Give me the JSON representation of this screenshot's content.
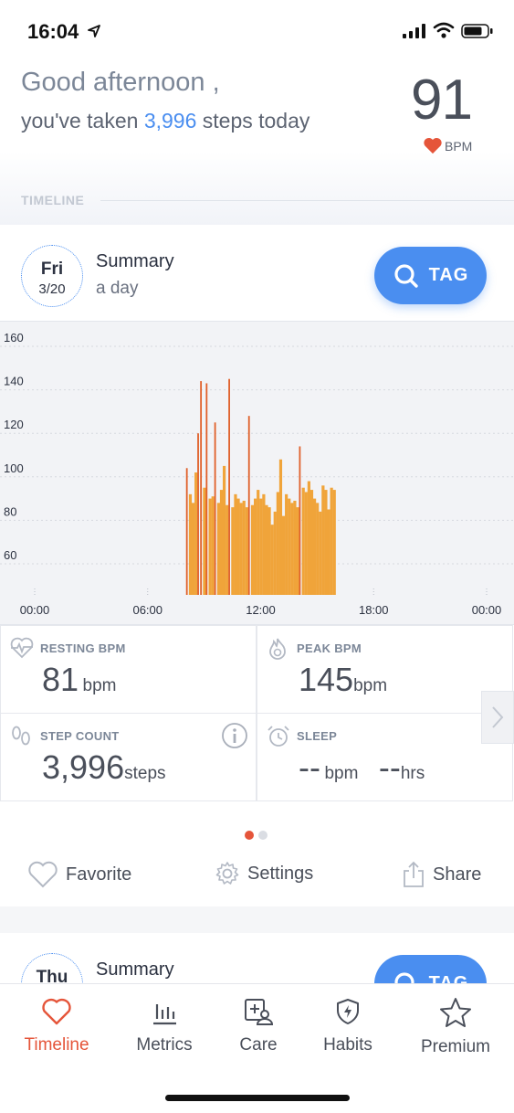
{
  "status_bar": {
    "time": "16:04"
  },
  "header": {
    "greeting": "Good afternoon ,",
    "steps_prefix": "you've taken ",
    "steps_value": "3,996",
    "steps_suffix": " steps today",
    "heart_rate": "91",
    "heart_rate_unit": "BPM",
    "section_label": "TIMELINE"
  },
  "card": {
    "day_of_week": "Fri",
    "date": "3/20",
    "title": "Summary",
    "subtitle": "a day",
    "tag_button": "TAG"
  },
  "chart_data": {
    "type": "bar",
    "xlabel": "",
    "ylabel": "",
    "x_ticks": [
      "00:00",
      "06:00",
      "12:00",
      "18:00",
      "00:00"
    ],
    "y_ticks": [
      60,
      80,
      100,
      120,
      140,
      160
    ],
    "xlim_hours": [
      0,
      24
    ],
    "ylim": [
      50,
      165
    ],
    "bar_color": "#f0a43a",
    "peak_color": "#e0602a",
    "hours": [
      8.1,
      8.25,
      8.4,
      8.55,
      8.7,
      8.85,
      9.0,
      9.15,
      9.3,
      9.45,
      9.6,
      9.75,
      9.9,
      10.05,
      10.2,
      10.35,
      10.5,
      10.65,
      10.8,
      10.95,
      11.1,
      11.25,
      11.4,
      11.55,
      11.7,
      11.85,
      12.0,
      12.15,
      12.3,
      12.45,
      12.6,
      12.75,
      12.9,
      13.05,
      13.2,
      13.35,
      13.5,
      13.65,
      13.8,
      13.95,
      14.1,
      14.25,
      14.4,
      14.55,
      14.7,
      14.85,
      15.0,
      15.15,
      15.3,
      15.45,
      15.6,
      15.75,
      15.9
    ],
    "bpm": [
      104,
      92,
      88,
      102,
      120,
      144,
      95,
      143,
      90,
      91,
      125,
      88,
      94,
      105,
      87,
      145,
      86,
      92,
      90,
      88,
      89,
      86,
      128,
      87,
      90,
      94,
      90,
      92,
      87,
      86,
      78,
      84,
      93,
      108,
      82,
      92,
      90,
      88,
      89,
      86,
      114,
      95,
      93,
      98,
      94,
      90,
      88,
      84,
      96,
      94,
      85,
      95,
      94
    ],
    "peaks": [
      0,
      4,
      5,
      7,
      10,
      15,
      22,
      40
    ]
  },
  "metrics": {
    "resting": {
      "label": "RESTING BPM",
      "value": "81",
      "unit": "bpm"
    },
    "peak": {
      "label": "PEAK BPM",
      "value": "145",
      "unit": "bpm"
    },
    "steps": {
      "label": "STEP COUNT",
      "value": "3,996",
      "unit": "steps"
    },
    "sleep": {
      "label": "SLEEP",
      "bpm_value": "--",
      "bpm_unit": "bpm",
      "hrs_value": "--",
      "hrs_unit": "hrs"
    }
  },
  "pagination": {
    "pages": 2,
    "active": 1
  },
  "actions": {
    "favorite": "Favorite",
    "settings": "Settings",
    "share": "Share"
  },
  "next_card": {
    "day_of_week": "Thu",
    "title": "Summary",
    "tag_button": "TAG"
  },
  "tabs": [
    {
      "label": "Timeline",
      "icon": "heart-outline-icon",
      "active": true
    },
    {
      "label": "Metrics",
      "icon": "bar-metrics-icon",
      "active": false
    },
    {
      "label": "Care",
      "icon": "care-plus-icon",
      "active": false
    },
    {
      "label": "Habits",
      "icon": "shield-bolt-icon",
      "active": false
    },
    {
      "label": "Premium",
      "icon": "star-outline-icon",
      "active": false
    }
  ],
  "colors": {
    "accent": "#4a8ef0",
    "active_tab": "#e5553a",
    "heart": "#e5553a"
  }
}
